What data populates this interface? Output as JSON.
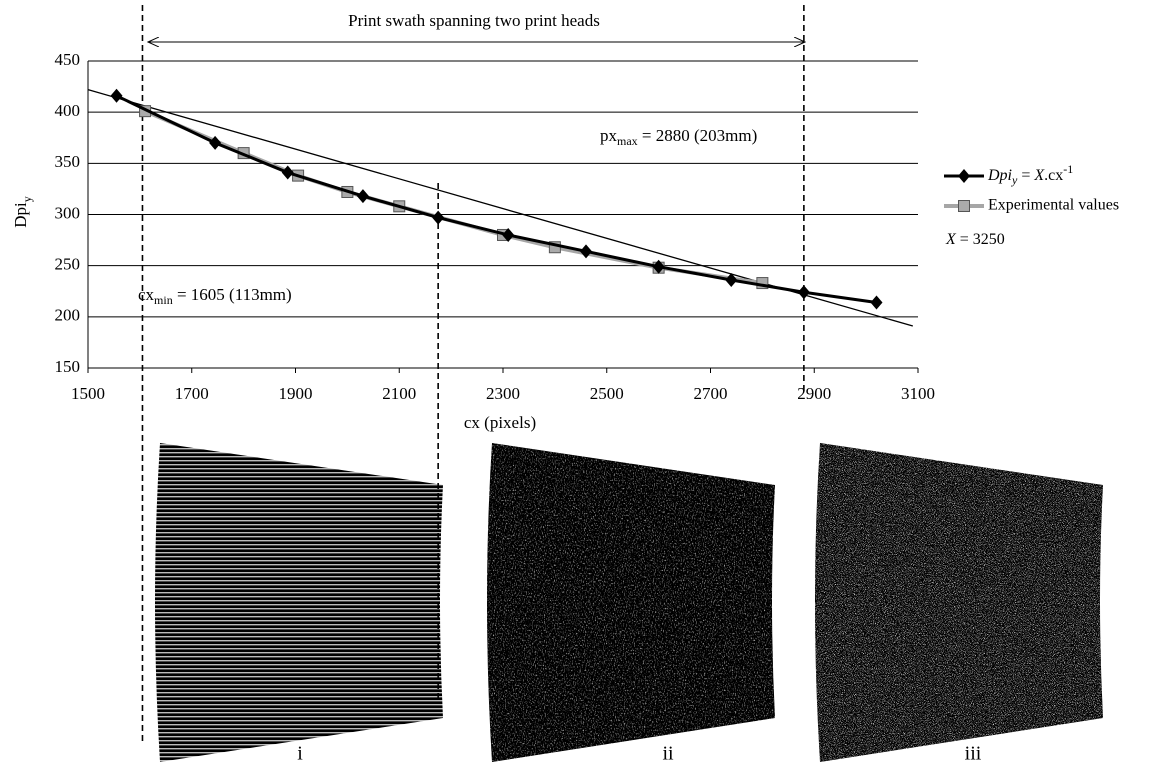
{
  "chart_data": {
    "type": "line",
    "top_note": "Print swath spanning two print heads",
    "x_label": "cx (pixels)",
    "y_label": {
      "main": "Dpi",
      "sub": "y"
    },
    "xlim": [
      1500,
      3100
    ],
    "xticks": [
      1500,
      1700,
      1900,
      2100,
      2300,
      2500,
      2700,
      2900,
      3100
    ],
    "ylim": [
      150,
      450
    ],
    "yticks": [
      150,
      200,
      250,
      300,
      350,
      400,
      450
    ],
    "grid": true,
    "legend": "right",
    "series": [
      {
        "name": {
          "main": "Dpi",
          "sub": "y",
          "eq": " = ",
          "var": "X",
          "rest": ".cx",
          "sup": "-1"
        },
        "color": "#000000",
        "marker": "diamond",
        "x": [
          1555,
          1745,
          1885,
          2030,
          2175,
          2310,
          2460,
          2600,
          2740,
          2880,
          3020
        ],
        "values": [
          416,
          370,
          341,
          318,
          297,
          280,
          264,
          249,
          236,
          224,
          214
        ]
      },
      {
        "name": "Experimental values",
        "color": "#a6a6a6",
        "marker": "square",
        "x": [
          1610,
          1800,
          1905,
          2000,
          2100,
          2300,
          2400,
          2600,
          2800
        ],
        "values": [
          401,
          360,
          338,
          322,
          308,
          280,
          268,
          248,
          233
        ]
      }
    ],
    "trend_line": {
      "x": [
        1500,
        3090
      ],
      "values": [
        422,
        191
      ]
    },
    "x_constant": {
      "var": "X",
      "rest": " = 3250"
    },
    "vlines": [
      1605,
      2175,
      2880
    ],
    "annotations": [
      {
        "main": "cx",
        "sub": "min",
        "rest": " = 1605 (113mm)"
      },
      {
        "main": "px",
        "sub": "max",
        "rest": " = 2880 (203mm)"
      }
    ],
    "panels": [
      "i",
      "ii",
      "iii"
    ]
  }
}
